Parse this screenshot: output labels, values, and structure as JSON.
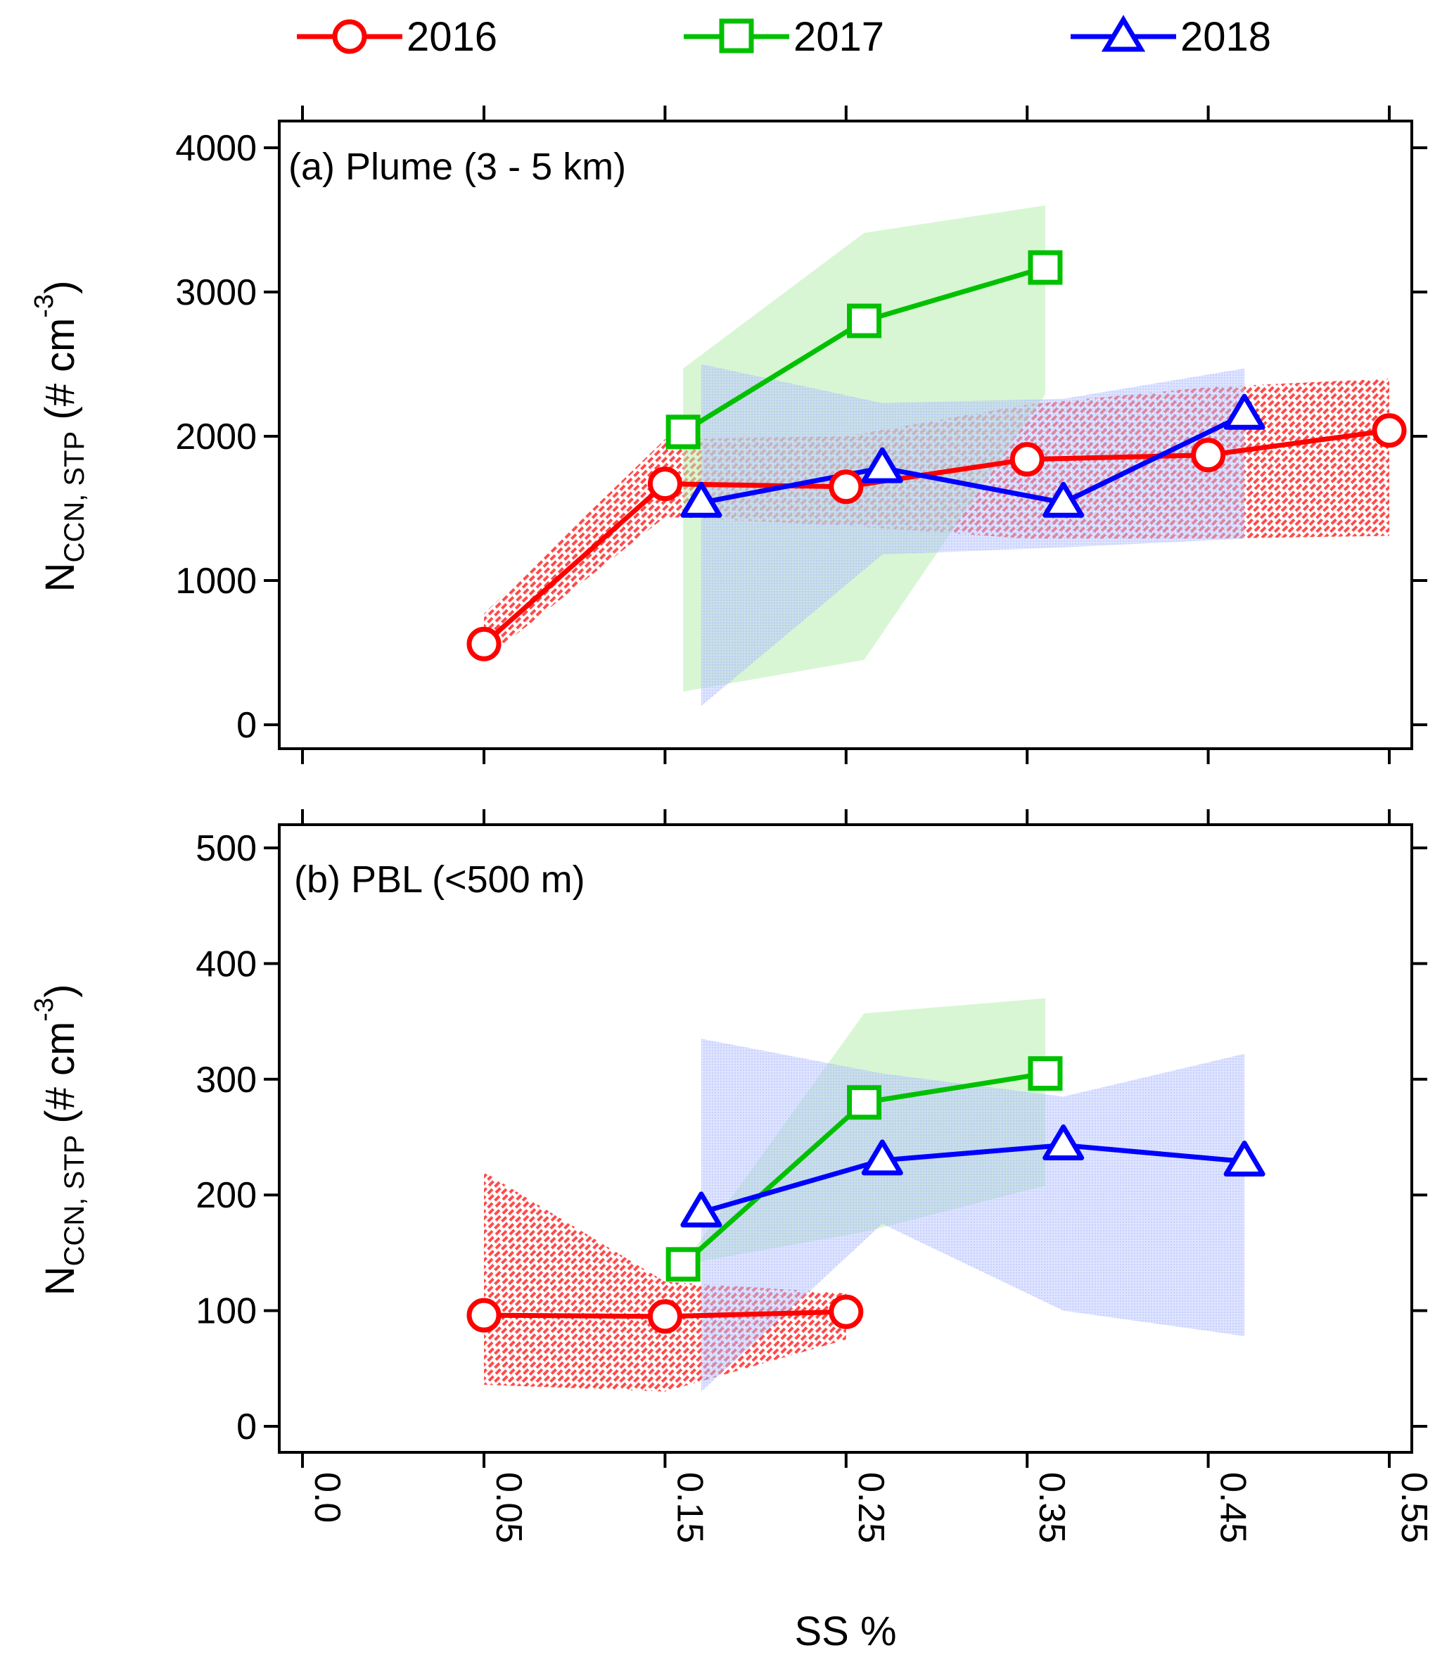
{
  "legend": {
    "entries": [
      {
        "label": "2016",
        "color": "#ff0000",
        "marker": "circle"
      },
      {
        "label": "2017",
        "color": "#00c000",
        "marker": "square"
      },
      {
        "label": "2018",
        "color": "#0000ff",
        "marker": "triangle"
      }
    ],
    "placement": "top, above both panels"
  },
  "xaxis": {
    "label": "SS %",
    "tick_values": [
      0.0,
      0.05,
      0.15,
      0.25,
      0.35,
      0.45,
      0.55
    ],
    "tick_labels": [
      "0.0",
      "0.05",
      "0.15",
      "0.25",
      "0.35",
      "0.45",
      "0.55"
    ],
    "tick_label_rotation": "vertical"
  },
  "chart_data": [
    {
      "type": "line",
      "panel_label": "(a) Plume (3 - 5 km)",
      "ylabel": {
        "main": "N",
        "subscript": "CCN, STP",
        "unit_open": "(# cm",
        "unit_sup": "-3",
        "unit_close": ")"
      },
      "xlim": [
        0.0,
        0.55
      ],
      "ylim": [
        0,
        4000
      ],
      "yticks": [
        0,
        1000,
        2000,
        3000,
        4000
      ],
      "grid": false,
      "series": [
        {
          "name": "2016",
          "color": "#ff0000",
          "marker": "circle",
          "band_style": "hatched",
          "x": [
            0.05,
            0.15,
            0.25,
            0.35,
            0.45,
            0.55
          ],
          "y": [
            560,
            1670,
            1650,
            1840,
            1870,
            2040
          ],
          "band_upper": [
            770,
            1980,
            2000,
            2220,
            2340,
            2400
          ],
          "band_lower": [
            450,
            1440,
            1380,
            1290,
            1290,
            1310
          ]
        },
        {
          "name": "2017",
          "color": "#00c000",
          "marker": "square",
          "band_style": "solid",
          "x": [
            0.16,
            0.26,
            0.36
          ],
          "y": [
            2030,
            2800,
            3170
          ],
          "band_upper": [
            2470,
            3410,
            3600
          ],
          "band_lower": [
            230,
            450,
            2290
          ]
        },
        {
          "name": "2018",
          "color": "#0000ff",
          "marker": "triangle",
          "band_style": "solid",
          "x": [
            0.17,
            0.27,
            0.37,
            0.47
          ],
          "y": [
            1540,
            1780,
            1540,
            2150
          ],
          "band_upper": [
            2500,
            2230,
            2260,
            2470
          ],
          "band_lower": [
            130,
            1180,
            1230,
            1290
          ]
        }
      ]
    },
    {
      "type": "line",
      "panel_label": "(b) PBL (<500 m)",
      "ylabel": {
        "main": "N",
        "subscript": "CCN, STP",
        "unit_open": "(# cm",
        "unit_sup": "-3",
        "unit_close": ")"
      },
      "xlim": [
        0.0,
        0.55
      ],
      "ylim": [
        0,
        500
      ],
      "yticks": [
        0,
        100,
        200,
        300,
        400,
        500
      ],
      "grid": false,
      "series": [
        {
          "name": "2016",
          "color": "#ff0000",
          "marker": "circle",
          "band_style": "hatched",
          "x": [
            0.05,
            0.15,
            0.25
          ],
          "y": [
            96,
            95,
            99
          ],
          "band_upper": [
            220,
            125,
            115
          ],
          "band_lower": [
            36,
            30,
            75
          ]
        },
        {
          "name": "2017",
          "color": "#00c000",
          "marker": "square",
          "band_style": "solid",
          "x": [
            0.16,
            0.26,
            0.36
          ],
          "y": [
            140,
            280,
            305
          ],
          "band_upper": [
            140,
            357,
            370
          ],
          "band_lower": [
            140,
            168,
            208
          ]
        },
        {
          "name": "2018",
          "color": "#0000ff",
          "marker": "triangle",
          "band_style": "solid",
          "x": [
            0.17,
            0.27,
            0.37,
            0.47
          ],
          "y": [
            185,
            230,
            243,
            229
          ],
          "band_upper": [
            335,
            305,
            285,
            322
          ],
          "band_lower": [
            30,
            175,
            100,
            78
          ]
        }
      ]
    }
  ]
}
